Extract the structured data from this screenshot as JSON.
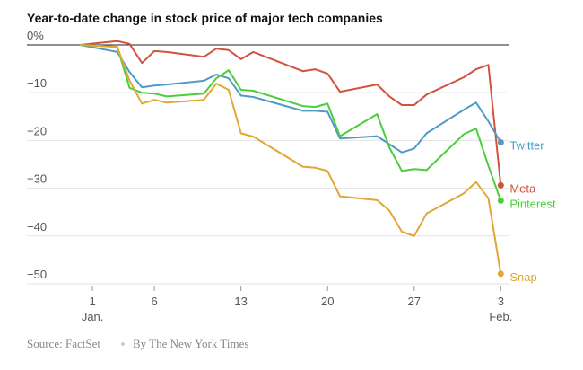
{
  "chart_data": {
    "type": "line",
    "title": "Year-to-date change in stock price of major tech companies",
    "source": "Source: FactSet",
    "credit": "By The New York Times",
    "x": [
      0,
      3,
      4,
      5,
      6,
      7,
      10,
      11,
      12,
      13,
      14,
      18,
      19,
      20,
      21,
      24,
      25,
      26,
      27,
      28,
      31,
      32,
      33,
      34
    ],
    "xlim": [
      -4.3,
      34.7
    ],
    "xticks": [
      {
        "value": 1,
        "label": "1"
      },
      6,
      13,
      20,
      27,
      {
        "value": 34,
        "label": "3"
      }
    ],
    "x_months": [
      {
        "value": 1,
        "label": "Jan."
      },
      {
        "value": 34,
        "label": "Feb."
      }
    ],
    "ylim": [
      -50,
      3
    ],
    "yticks": [
      {
        "value": 0,
        "label": "0%"
      },
      {
        "value": -10,
        "label": "−10"
      },
      {
        "value": -20,
        "label": "−20"
      },
      {
        "value": -30,
        "label": "−30"
      },
      {
        "value": -40,
        "label": "−40"
      },
      {
        "value": -50,
        "label": "−50"
      }
    ],
    "grid": true,
    "series": [
      {
        "name": "Meta",
        "color": "#d1533f",
        "values": [
          0,
          0.8,
          0.2,
          -3.8,
          -1.3,
          -1.5,
          -2.5,
          -0.8,
          -1.1,
          -3,
          -1.5,
          -5.5,
          -5.1,
          -6,
          -9.8,
          -8.3,
          -10.8,
          -12.6,
          -12.6,
          -10.4,
          -6.8,
          -5.1,
          -4.2,
          -29.4
        ]
      },
      {
        "name": "Twitter",
        "color": "#4f9bc2",
        "values": [
          0,
          -1.5,
          -5.7,
          -8.9,
          -8.5,
          -8.3,
          -7.5,
          -6.2,
          -7,
          -10.6,
          -10.9,
          -13.8,
          -13.8,
          -14,
          -19.6,
          -19.1,
          -20.8,
          -22.5,
          -21.7,
          -18.5,
          -13.6,
          -12.1,
          -16,
          -20.4
        ]
      },
      {
        "name": "Pinterest",
        "color": "#4cce3c",
        "values": [
          0,
          -0.4,
          -9,
          -10,
          -10.2,
          -10.8,
          -10.2,
          -7,
          -5.3,
          -9.4,
          -9.6,
          -12.8,
          -13,
          -12.3,
          -19.1,
          -14.5,
          -21.5,
          -26.4,
          -26,
          -26.2,
          -18.7,
          -17.5,
          -25.3,
          -32.6
        ]
      },
      {
        "name": "Snap",
        "color": "#e0a735",
        "values": [
          0,
          -0.4,
          -7.5,
          -12.3,
          -11.5,
          -12.1,
          -11.5,
          -8.1,
          -9.4,
          -18.5,
          -19.2,
          -25.5,
          -25.7,
          -26.4,
          -31.7,
          -32.5,
          -34.7,
          -39.1,
          -40,
          -35.3,
          -31.1,
          -28.7,
          -32.1,
          -47.9
        ]
      }
    ]
  }
}
